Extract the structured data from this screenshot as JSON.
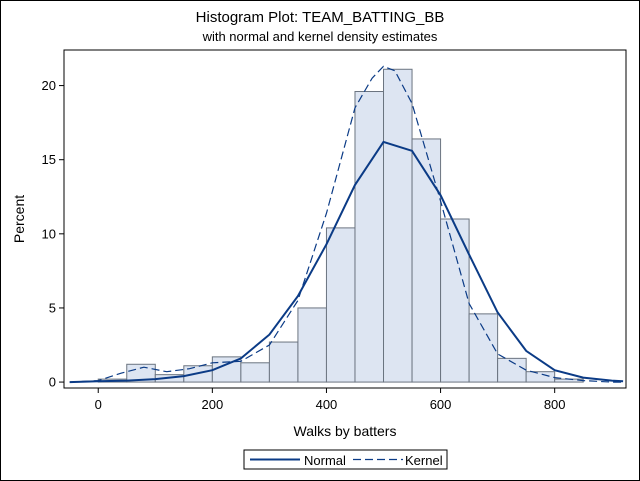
{
  "chart_data": {
    "type": "bar",
    "title": "Histogram Plot: TEAM_BATTING_BB",
    "subtitle": "with normal and kernel density estimates",
    "xlabel": "Walks by batters",
    "ylabel": "Percent",
    "xlim": [
      -60,
      925
    ],
    "ylim": [
      -0.4,
      22.4
    ],
    "xticks": [
      0,
      200,
      400,
      600,
      800
    ],
    "yticks": [
      0,
      5,
      10,
      15,
      20
    ],
    "bin_width": 50,
    "bins": [
      {
        "start": 0,
        "value": 0.2
      },
      {
        "start": 50,
        "value": 1.2
      },
      {
        "start": 100,
        "value": 0.5
      },
      {
        "start": 150,
        "value": 1.1
      },
      {
        "start": 200,
        "value": 1.7
      },
      {
        "start": 250,
        "value": 1.3
      },
      {
        "start": 300,
        "value": 2.7
      },
      {
        "start": 350,
        "value": 5.0
      },
      {
        "start": 400,
        "value": 10.4
      },
      {
        "start": 450,
        "value": 19.6
      },
      {
        "start": 500,
        "value": 21.1
      },
      {
        "start": 550,
        "value": 16.4
      },
      {
        "start": 600,
        "value": 11.0
      },
      {
        "start": 650,
        "value": 4.6
      },
      {
        "start": 700,
        "value": 1.6
      },
      {
        "start": 750,
        "value": 0.7
      },
      {
        "start": 800,
        "value": 0.2
      }
    ],
    "normal_curve": {
      "name": "Normal",
      "x": [
        -50,
        0,
        50,
        100,
        150,
        200,
        250,
        300,
        350,
        400,
        450,
        500,
        550,
        600,
        650,
        700,
        750,
        800,
        850,
        900,
        920
      ],
      "y": [
        0.0,
        0.05,
        0.1,
        0.2,
        0.4,
        0.8,
        1.6,
        3.2,
        5.8,
        9.3,
        13.3,
        16.2,
        15.6,
        12.6,
        8.6,
        4.7,
        2.1,
        0.8,
        0.3,
        0.1,
        0.05
      ]
    },
    "kernel_curve": {
      "name": "Kernel",
      "x": [
        -50,
        0,
        40,
        80,
        120,
        160,
        200,
        250,
        300,
        350,
        400,
        450,
        480,
        500,
        520,
        550,
        600,
        650,
        700,
        750,
        800,
        850,
        900,
        920
      ],
      "y": [
        0.0,
        0.1,
        0.6,
        1.0,
        0.7,
        0.9,
        1.3,
        1.4,
        2.5,
        5.5,
        11.4,
        18.5,
        20.5,
        21.3,
        21.0,
        18.8,
        12.2,
        5.3,
        1.9,
        0.8,
        0.3,
        0.1,
        0.0,
        0.0
      ]
    },
    "legend": {
      "placement": "bottom",
      "normal_label": "Normal",
      "kernel_label": "Kernel"
    },
    "colors": {
      "bar_fill": "#dde5f2",
      "bar_stroke": "#6b7480",
      "curve": "#0b3b86"
    }
  }
}
